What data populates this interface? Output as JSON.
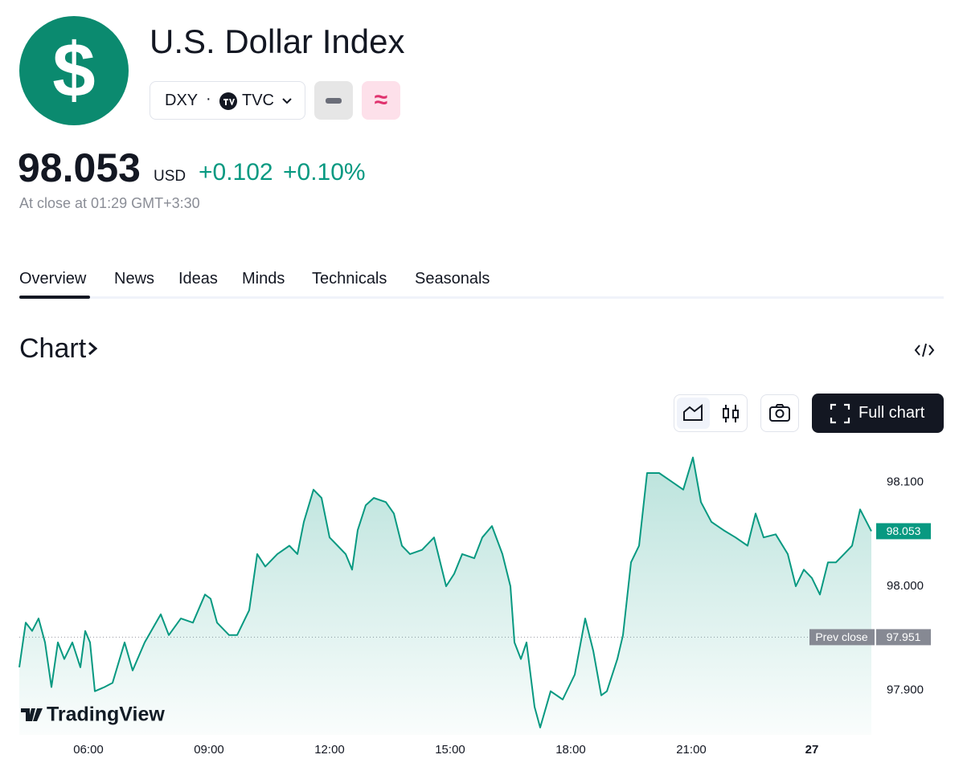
{
  "header": {
    "icon_text": "$",
    "title": "U.S. Dollar Index",
    "symbol": "DXY",
    "exchange": "TVC",
    "button_text": "≈"
  },
  "quote": {
    "price": "98.053",
    "currency": "USD",
    "change": "+0.102",
    "change_percent": "+0.10%",
    "status": "At close at 01:29 GMT+3:30"
  },
  "tabs": [
    "Overview",
    "News",
    "Ideas",
    "Minds",
    "Technicals",
    "Seasonals"
  ],
  "section_title": "Chart",
  "full_chart": "Full chart",
  "chart_data": {
    "type": "line",
    "color": "#089981",
    "watermark": "TradingView",
    "x": [
      4.28,
      4.44,
      4.6,
      4.76,
      4.92,
      5.08,
      5.24,
      5.4,
      5.6,
      5.8,
      5.92,
      6.04,
      6.16,
      6.4,
      6.6,
      6.9,
      7.1,
      7.4,
      7.8,
      8.0,
      8.3,
      8.6,
      8.9,
      9.04,
      9.2,
      9.5,
      9.7,
      10.0,
      10.2,
      10.4,
      10.7,
      11.0,
      11.2,
      11.36,
      11.6,
      11.8,
      12.0,
      12.2,
      12.4,
      12.56,
      12.7,
      12.9,
      13.1,
      13.4,
      13.6,
      13.8,
      14.0,
      14.3,
      14.6,
      14.9,
      15.1,
      15.3,
      15.6,
      15.8,
      16.04,
      16.3,
      16.5,
      16.6,
      16.76,
      16.9,
      17.1,
      17.24,
      17.5,
      17.8,
      18.1,
      18.36,
      18.56,
      18.76,
      18.9,
      19.16,
      19.3,
      19.5,
      19.7,
      19.9,
      20.2,
      20.5,
      20.8,
      21.04,
      21.24,
      21.5,
      21.8,
      22.1,
      22.4,
      22.6,
      22.8,
      23.1,
      23.4,
      23.6,
      23.8,
      24.0,
      24.2,
      24.4,
      24.6,
      24.8,
      25.0,
      25.2,
      25.48
    ],
    "values": [
      97.922,
      97.965,
      97.957,
      97.969,
      97.946,
      97.903,
      97.946,
      97.93,
      97.946,
      97.922,
      97.957,
      97.946,
      97.899,
      97.903,
      97.907,
      97.946,
      97.919,
      97.946,
      97.973,
      97.953,
      97.969,
      97.965,
      97.992,
      97.988,
      97.965,
      97.953,
      97.953,
      97.977,
      98.031,
      98.019,
      98.031,
      98.039,
      98.031,
      98.062,
      98.093,
      98.085,
      98.047,
      98.039,
      98.031,
      98.016,
      98.054,
      98.078,
      98.085,
      98.081,
      98.07,
      98.039,
      98.031,
      98.035,
      98.047,
      98.0,
      98.012,
      98.031,
      98.027,
      98.047,
      98.058,
      98.031,
      98.0,
      97.946,
      97.93,
      97.946,
      97.884,
      97.864,
      97.899,
      97.891,
      97.915,
      97.969,
      97.938,
      97.895,
      97.899,
      97.93,
      97.953,
      98.023,
      98.039,
      98.109,
      98.109,
      98.101,
      98.093,
      98.124,
      98.081,
      98.062,
      98.054,
      98.047,
      98.039,
      98.07,
      98.047,
      98.05,
      98.031,
      98.0,
      98.016,
      98.008,
      97.992,
      98.023,
      98.023,
      98.031,
      98.039,
      98.074,
      98.053
    ],
    "xlim": [
      4.28,
      25.56
    ],
    "xticks": [
      {
        "value": 6,
        "label": "06:00"
      },
      {
        "value": 9,
        "label": "09:00"
      },
      {
        "value": 12,
        "label": "12:00"
      },
      {
        "value": 15,
        "label": "15:00"
      },
      {
        "value": 18,
        "label": "18:00"
      },
      {
        "value": 21,
        "label": "21:00"
      },
      {
        "value": 24,
        "label": "27"
      }
    ],
    "ylim": [
      97.857,
      98.143
    ],
    "yticks": [
      {
        "value": 97.9,
        "label": "97.900"
      },
      {
        "value": 98.0,
        "label": "98.000"
      },
      {
        "value": 98.1,
        "label": "98.100"
      }
    ],
    "prev_close": 97.951,
    "prev_close_label": "Prev close",
    "grid": false
  }
}
